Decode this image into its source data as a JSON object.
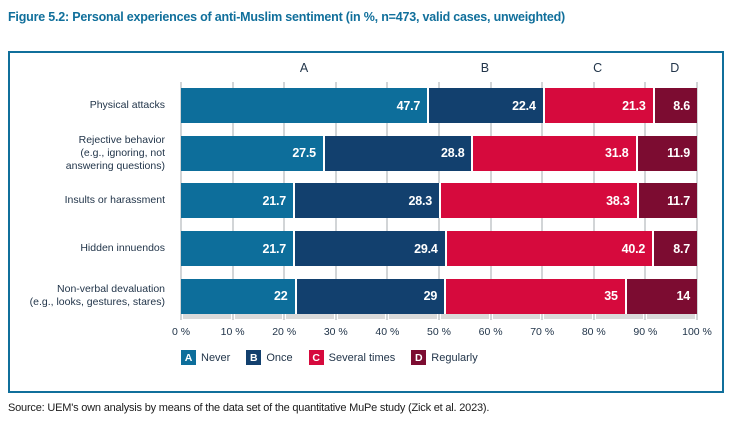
{
  "title": "Figure 5.2: Personal experiences of anti-Muslim sentiment (in %, n=473, valid cases, unweighted)",
  "source": "Source: UEM's own analysis by means of the data set of the quantitative MuPe study (Zick et al. 2023).",
  "colors": {
    "accent": "#106f9b",
    "never": "#0d6e9b",
    "once": "#12406e",
    "several_times": "#d60a3d",
    "regularly": "#7c0c31",
    "gridline": "#d2d5d7",
    "text_dark": "#22354a"
  },
  "chart_data": {
    "type": "bar",
    "orientation": "horizontal",
    "stacked": true,
    "unit": "%",
    "xlim": [
      0,
      100
    ],
    "grid": true,
    "legend_position": "bottom",
    "column_headers": [
      "A",
      "B",
      "C",
      "D"
    ],
    "x_ticks": [
      "0 %",
      "10 %",
      "20 %",
      "30 %",
      "40 %",
      "50 %",
      "60 %",
      "70 %",
      "80 %",
      "90 %",
      "100 %"
    ],
    "x_tick_values": [
      0,
      10,
      20,
      30,
      40,
      50,
      60,
      70,
      80,
      90,
      100
    ],
    "categories": [
      "Physical attacks",
      "Rejective behavior (e.g., ignoring, not answering questions)",
      "Insults or harassment",
      "Hidden innuendos",
      "Non-verbal devaluation (e.g., looks, gestures, stares)"
    ],
    "category_lines": [
      [
        "Physical attacks"
      ],
      [
        "Rejective behavior",
        "(e.g., ignoring, not",
        "answering questions)"
      ],
      [
        "Insults or harassment"
      ],
      [
        "Hidden innuendos"
      ],
      [
        "Non-verbal devaluation",
        "(e.g., looks, gestures, stares)"
      ]
    ],
    "series": [
      {
        "key": "A",
        "name": "Never",
        "color": "#0d6e9b",
        "values": [
          47.7,
          27.5,
          21.7,
          21.7,
          22
        ],
        "labels": [
          "47.7",
          "27.5",
          "21.7",
          "21.7",
          "22"
        ]
      },
      {
        "key": "B",
        "name": "Once",
        "color": "#12406e",
        "values": [
          22.4,
          28.8,
          28.3,
          29.4,
          29
        ],
        "labels": [
          "22.4",
          "28.8",
          "28.3",
          "29.4",
          "29"
        ]
      },
      {
        "key": "C",
        "name": "Several times",
        "color": "#d60a3d",
        "values": [
          21.3,
          31.8,
          38.3,
          40.2,
          35
        ],
        "labels": [
          "21.3",
          "31.8",
          "38.3",
          "40.2",
          "35"
        ]
      },
      {
        "key": "D",
        "name": "Regularly",
        "color": "#7c0c31",
        "values": [
          8.6,
          11.9,
          11.7,
          8.7,
          14
        ],
        "labels": [
          "8.6",
          "11.9",
          "11.7",
          "8.7",
          "14"
        ]
      }
    ]
  }
}
